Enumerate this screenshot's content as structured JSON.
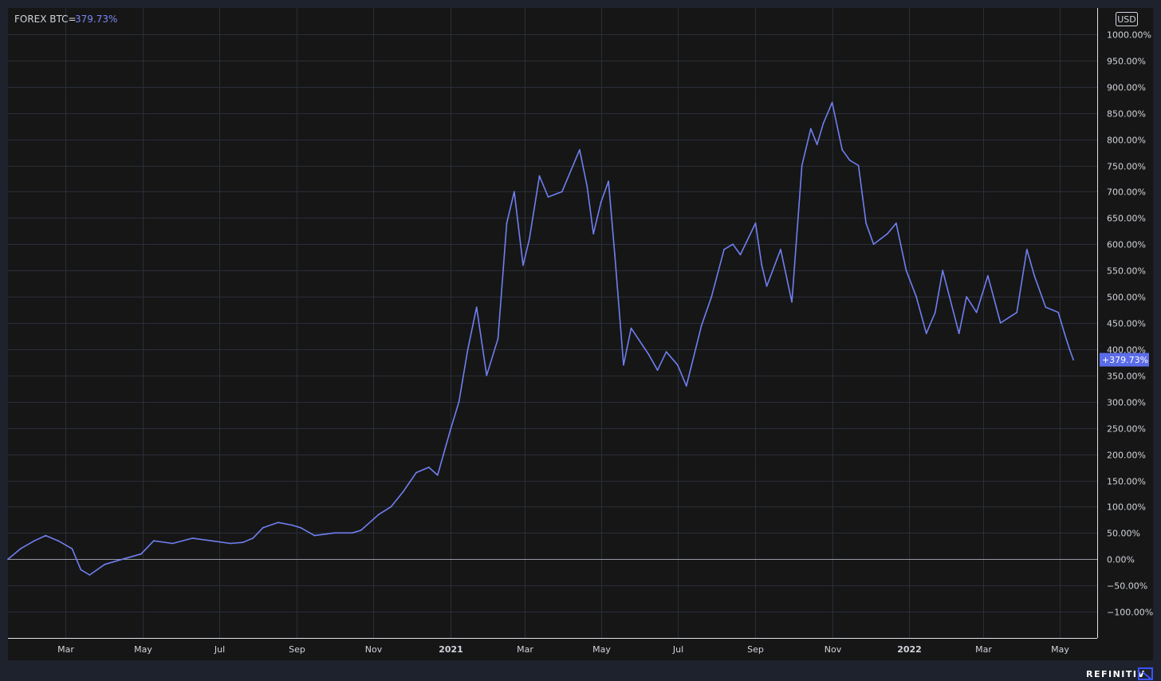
{
  "legend": {
    "symbol": "FOREX BTC=",
    "value": "379.73%"
  },
  "currency_label": "USD",
  "last_value_label": "+379.73%",
  "brand": "REFINITIV",
  "colors": {
    "line": "#6f7ff0",
    "background": "#161616",
    "frame": "#1e222d",
    "grid": "#2a2e39",
    "text": "#d1d4dc",
    "badge": "#5b6ce8"
  },
  "chart_data": {
    "type": "line",
    "title": "",
    "xlabel": "",
    "ylabel": "",
    "y_unit": "%",
    "ylim": [
      -150,
      1050
    ],
    "y_ticks": [
      "1000.00%",
      "950.00%",
      "900.00%",
      "850.00%",
      "800.00%",
      "750.00%",
      "700.00%",
      "650.00%",
      "600.00%",
      "550.00%",
      "500.00%",
      "450.00%",
      "400.00%",
      "350.00%",
      "300.00%",
      "250.00%",
      "200.00%",
      "150.00%",
      "100.00%",
      "50.00%",
      "0.00%",
      "−50.00%",
      "−100.00%"
    ],
    "y_tick_values": [
      1000,
      950,
      900,
      850,
      800,
      750,
      700,
      650,
      600,
      550,
      500,
      450,
      400,
      350,
      300,
      250,
      200,
      150,
      100,
      50,
      0,
      -50,
      -100
    ],
    "xlim": [
      "2020-01-15",
      "2022-05-31"
    ],
    "x_ticks": [
      {
        "date": "2020-03-01",
        "label": "Mar",
        "major": false
      },
      {
        "date": "2020-05-01",
        "label": "May",
        "major": false
      },
      {
        "date": "2020-07-01",
        "label": "Jul",
        "major": false
      },
      {
        "date": "2020-09-01",
        "label": "Sep",
        "major": false
      },
      {
        "date": "2020-11-01",
        "label": "Nov",
        "major": false
      },
      {
        "date": "2021-01-01",
        "label": "2021",
        "major": true
      },
      {
        "date": "2021-03-01",
        "label": "Mar",
        "major": false
      },
      {
        "date": "2021-05-01",
        "label": "May",
        "major": false
      },
      {
        "date": "2021-07-01",
        "label": "Jul",
        "major": false
      },
      {
        "date": "2021-09-01",
        "label": "Sep",
        "major": false
      },
      {
        "date": "2021-11-01",
        "label": "Nov",
        "major": false
      },
      {
        "date": "2022-01-01",
        "label": "2022",
        "major": true
      },
      {
        "date": "2022-03-01",
        "label": "Mar",
        "major": false
      },
      {
        "date": "2022-05-01",
        "label": "May",
        "major": false
      }
    ],
    "grid": true,
    "zero_line": true,
    "series": [
      {
        "x": [
          "2020-01-15",
          "2020-01-25",
          "2020-02-05",
          "2020-02-14",
          "2020-02-24",
          "2020-03-06",
          "2020-03-13",
          "2020-03-20",
          "2020-04-01",
          "2020-04-15",
          "2020-04-30",
          "2020-05-10",
          "2020-05-25",
          "2020-06-10",
          "2020-06-25",
          "2020-07-10",
          "2020-07-20",
          "2020-07-28",
          "2020-08-05",
          "2020-08-17",
          "2020-08-28",
          "2020-09-04",
          "2020-09-15",
          "2020-10-01",
          "2020-10-15",
          "2020-10-22",
          "2020-11-05",
          "2020-11-15",
          "2020-11-25",
          "2020-12-05",
          "2020-12-15",
          "2020-12-22",
          "2021-01-01",
          "2021-01-08",
          "2021-01-15",
          "2021-01-22",
          "2021-01-30",
          "2021-02-08",
          "2021-02-15",
          "2021-02-21",
          "2021-02-28",
          "2021-03-05",
          "2021-03-13",
          "2021-03-20",
          "2021-03-31",
          "2021-04-14",
          "2021-04-20",
          "2021-04-25",
          "2021-05-01",
          "2021-05-07",
          "2021-05-12",
          "2021-05-19",
          "2021-05-25",
          "2021-06-08",
          "2021-06-15",
          "2021-06-22",
          "2021-07-01",
          "2021-07-08",
          "2021-07-20",
          "2021-07-28",
          "2021-08-07",
          "2021-08-14",
          "2021-08-20",
          "2021-09-01",
          "2021-09-06",
          "2021-09-10",
          "2021-09-21",
          "2021-09-30",
          "2021-10-08",
          "2021-10-15",
          "2021-10-20",
          "2021-10-25",
          "2021-11-01",
          "2021-11-09",
          "2021-11-15",
          "2021-11-22",
          "2021-11-28",
          "2021-12-04",
          "2021-12-15",
          "2021-12-22",
          "2021-12-30",
          "2022-01-07",
          "2022-01-15",
          "2022-01-22",
          "2022-01-28",
          "2022-02-10",
          "2022-02-16",
          "2022-02-24",
          "2022-03-05",
          "2022-03-15",
          "2022-03-28",
          "2022-04-05",
          "2022-04-11",
          "2022-04-20",
          "2022-04-30",
          "2022-05-05",
          "2022-05-09",
          "2022-05-12"
        ],
        "values": [
          0,
          20,
          35,
          45,
          35,
          20,
          -20,
          -30,
          -10,
          0,
          10,
          35,
          30,
          40,
          35,
          30,
          32,
          40,
          60,
          70,
          65,
          60,
          45,
          50,
          50,
          55,
          85,
          100,
          130,
          165,
          175,
          160,
          245,
          300,
          400,
          480,
          350,
          420,
          640,
          700,
          560,
          610,
          730,
          690,
          700,
          780,
          710,
          620,
          680,
          720,
          580,
          370,
          440,
          390,
          360,
          395,
          370,
          330,
          445,
          500,
          590,
          600,
          580,
          640,
          560,
          520,
          590,
          490,
          750,
          820,
          790,
          830,
          870,
          780,
          760,
          750,
          640,
          600,
          620,
          640,
          550,
          500,
          430,
          470,
          550,
          430,
          500,
          470,
          540,
          450,
          470,
          590,
          540,
          480,
          470,
          430,
          400,
          380
        ]
      }
    ]
  }
}
